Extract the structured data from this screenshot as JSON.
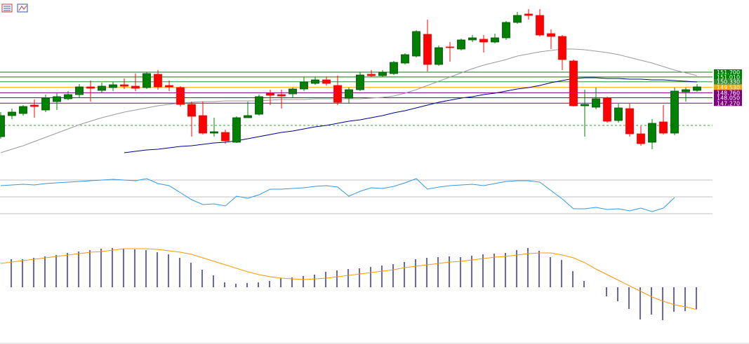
{
  "chart_data": [
    {
      "type": "candlestick",
      "ylim": [
        138.5,
        162.0
      ],
      "up_color": "#008000",
      "up_border": "#005000",
      "down_color": "#ff0000",
      "open": [
        142.5,
        145.5,
        145.8,
        147.0,
        146.3,
        147.5,
        147.9,
        148.5,
        149.6,
        149.1,
        149.5,
        149.9,
        149.7,
        149.5,
        151.4,
        149.8,
        149.5,
        147.1,
        145.5,
        143.0,
        143.1,
        141.7,
        145.2,
        145.7,
        148.7,
        148.5,
        148.6,
        149.3,
        150.1,
        150.6,
        149.8,
        148.0,
        149.2,
        151.4,
        151.2,
        151.5,
        153.0,
        154.0,
        157.1,
        152.8,
        155.3,
        155.0,
        156.3,
        156.4,
        156.0,
        156.6,
        158.8,
        160.0,
        159.8,
        157.2,
        156.8,
        153.3,
        146.9,
        146.7,
        148.0,
        144.8,
        146.5,
        142.9,
        141.7,
        144.6,
        143.0,
        148.9,
        149.1
      ],
      "high": [
        146.0,
        146.5,
        147.0,
        147.8,
        148.5,
        148.7,
        149.0,
        150.0,
        150.5,
        150.2,
        150.3,
        150.8,
        151.5,
        151.7,
        152.0,
        150.5,
        149.7,
        147.5,
        147.5,
        145.2,
        143.5,
        145.4,
        147.5,
        148.5,
        149.2,
        149.2,
        149.5,
        151.0,
        151.0,
        151.0,
        151.2,
        149.5,
        151.7,
        152.0,
        152.0,
        153.3,
        154.4,
        157.7,
        159.2,
        155.5,
        156.0,
        156.5,
        157.0,
        157.0,
        157.2,
        159.0,
        160.3,
        160.7,
        160.7,
        157.8,
        157.0,
        153.5,
        149.2,
        149.5,
        148.2,
        147.2,
        147.2,
        144.0,
        145.0,
        147.0,
        149.5,
        149.5,
        150.0
      ],
      "low": [
        142.2,
        145.0,
        145.5,
        145.2,
        146.0,
        146.3,
        147.7,
        148.0,
        147.5,
        148.8,
        149.0,
        149.3,
        149.0,
        149.3,
        149.2,
        149.0,
        146.8,
        142.5,
        142.8,
        142.5,
        141.5,
        141.6,
        145.2,
        145.5,
        147.0,
        146.5,
        148.0,
        149.0,
        149.9,
        149.8,
        147.0,
        147.2,
        149.0,
        151.0,
        151.0,
        151.3,
        152.8,
        153.8,
        151.8,
        152.6,
        153.2,
        154.8,
        156.0,
        154.5,
        155.8,
        156.3,
        158.6,
        159.2,
        156.8,
        155.0,
        152.0,
        146.8,
        142.5,
        146.4,
        144.5,
        144.5,
        142.5,
        141.2,
        140.7,
        142.8,
        142.7,
        147.5,
        148.9
      ],
      "close": [
        145.5,
        146.0,
        146.8,
        146.8,
        148.0,
        148.2,
        148.5,
        149.6,
        149.4,
        149.7,
        149.9,
        149.7,
        149.4,
        151.5,
        149.6,
        149.6,
        147.1,
        145.4,
        143.0,
        143.2,
        141.9,
        145.2,
        145.5,
        148.2,
        148.4,
        148.3,
        149.3,
        150.3,
        150.6,
        150.1,
        147.4,
        149.2,
        151.3,
        151.2,
        151.7,
        153.1,
        154.2,
        157.5,
        152.8,
        155.2,
        155.2,
        156.3,
        156.6,
        156.0,
        156.6,
        158.8,
        159.8,
        159.8,
        157.0,
        156.8,
        153.5,
        146.9,
        147.1,
        147.9,
        144.7,
        146.6,
        142.9,
        141.5,
        144.4,
        143.0,
        149.0,
        149.2,
        149.6
      ],
      "overlays": [
        {
          "color": "#9a9a9a",
          "values": [
            140.2,
            140.7,
            141.2,
            141.8,
            142.4,
            143.0,
            143.6,
            144.2,
            144.7,
            145.2,
            145.6,
            146.0,
            146.3,
            146.6,
            146.9,
            147.1,
            147.3,
            147.4,
            147.5,
            147.5,
            147.6,
            147.6,
            147.6,
            147.6,
            147.7,
            147.8,
            147.8,
            147.8,
            147.9,
            147.9,
            147.9,
            147.9,
            147.9,
            148.0,
            148.1,
            148.3,
            148.7,
            149.2,
            149.8,
            150.4,
            151.0,
            151.6,
            152.2,
            152.7,
            153.1,
            153.5,
            154.0,
            154.3,
            154.6,
            154.8,
            155.0,
            155.0,
            154.9,
            154.7,
            154.5,
            154.2,
            153.8,
            153.4,
            153.0,
            152.5,
            152.0,
            151.6,
            151.2
          ]
        },
        {
          "color": "#00008b",
          "values": [
            null,
            null,
            null,
            null,
            null,
            null,
            null,
            null,
            null,
            null,
            null,
            140.2,
            140.4,
            140.6,
            140.7,
            140.9,
            141.1,
            141.2,
            141.4,
            141.6,
            141.7,
            141.9,
            142.2,
            142.5,
            142.8,
            143.1,
            143.3,
            143.6,
            143.9,
            144.1,
            144.4,
            144.7,
            144.9,
            145.2,
            145.5,
            145.9,
            146.2,
            146.6,
            147.0,
            147.4,
            147.7,
            148.0,
            148.2,
            148.5,
            148.7,
            149.0,
            149.3,
            149.5,
            149.8,
            150.2,
            150.5,
            150.8,
            150.9,
            150.9,
            150.8,
            150.8,
            150.7,
            150.7,
            150.6,
            150.6,
            150.5,
            150.4,
            150.3
          ]
        }
      ],
      "levels": [
        {
          "value": 151.7,
          "label": "151.700",
          "color": "#008000"
        },
        {
          "value": 151.01,
          "label": "151.010",
          "color": "#008000"
        },
        {
          "value": 150.33,
          "label": "150.330",
          "color": "#2e8b2e"
        },
        {
          "value": 149.53,
          "label": "149.530",
          "color": "#ffa500"
        },
        {
          "value": 148.76,
          "label": "148.760",
          "color": "#800080"
        },
        {
          "value": 148.05,
          "label": "148.050",
          "color": "#800080"
        },
        {
          "value": 147.27,
          "label": "147.270",
          "color": "#800080"
        }
      ],
      "dashed_level": {
        "value": 144.1,
        "color": "#33aa33"
      }
    },
    {
      "type": "line",
      "ylim": [
        20,
        80
      ],
      "levels": [
        70,
        50,
        30
      ],
      "series": [
        {
          "color": "#3399dd",
          "values": [
            63.3,
            64.2,
            65.0,
            64.2,
            65.8,
            66.7,
            67.5,
            68.3,
            69.2,
            70.0,
            70.8,
            70.0,
            69.2,
            71.7,
            65.8,
            63.3,
            55.0,
            46.7,
            40.8,
            41.7,
            39.2,
            50.8,
            48.3,
            52.5,
            59.2,
            59.2,
            60.0,
            60.8,
            62.5,
            63.3,
            61.7,
            50.8,
            56.7,
            60.8,
            60.0,
            62.5,
            66.7,
            71.7,
            59.2,
            61.7,
            63.3,
            64.2,
            65.0,
            63.3,
            65.8,
            68.3,
            69.2,
            69.2,
            67.5,
            57.5,
            47.5,
            35.8,
            35.8,
            37.5,
            35.0,
            35.8,
            33.3,
            36.7,
            32.5,
            36.7,
            49.2,
            null,
            null
          ]
        }
      ]
    },
    {
      "type": "bar",
      "ylim": [
        -0.7,
        0.7
      ],
      "color": "#000080",
      "values": [
        null,
        0.4,
        0.4,
        0.42,
        0.44,
        0.46,
        0.49,
        0.51,
        0.53,
        0.55,
        0.56,
        0.55,
        0.54,
        0.53,
        0.5,
        0.47,
        0.42,
        0.35,
        0.25,
        0.17,
        0.07,
        0.05,
        0.06,
        0.07,
        0.09,
        0.13,
        0.14,
        0.16,
        0.18,
        0.22,
        0.24,
        0.26,
        0.27,
        0.29,
        0.31,
        0.33,
        0.36,
        0.4,
        0.42,
        0.43,
        0.44,
        0.43,
        0.45,
        0.47,
        0.48,
        0.49,
        0.53,
        0.56,
        0.52,
        0.43,
        0.39,
        0.23,
        0.09,
        null,
        -0.13,
        -0.2,
        -0.31,
        -0.46,
        -0.39,
        -0.47,
        -0.35,
        -0.34,
        -0.31
      ],
      "series": [
        {
          "color": "#ff9900",
          "values": [
            0.34,
            0.36,
            0.38,
            0.4,
            0.42,
            0.44,
            0.46,
            0.48,
            0.5,
            0.51,
            0.53,
            0.55,
            0.55,
            0.55,
            0.54,
            0.52,
            0.5,
            0.47,
            0.42,
            0.37,
            0.32,
            0.27,
            0.22,
            0.18,
            0.15,
            0.13,
            0.12,
            0.11,
            0.12,
            0.13,
            0.15,
            0.17,
            0.19,
            0.21,
            0.23,
            0.25,
            0.28,
            0.3,
            0.32,
            0.34,
            0.36,
            0.37,
            0.39,
            0.41,
            0.43,
            0.44,
            0.46,
            0.48,
            0.49,
            0.49,
            0.46,
            0.42,
            0.35,
            0.26,
            0.18,
            0.1,
            0.02,
            -0.06,
            -0.14,
            -0.2,
            -0.25,
            -0.28,
            -0.32
          ]
        }
      ]
    }
  ]
}
